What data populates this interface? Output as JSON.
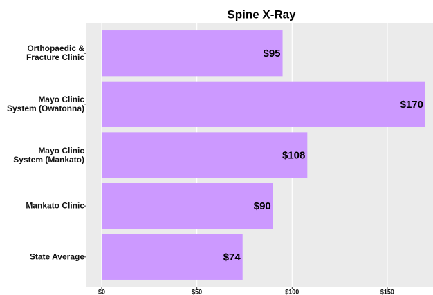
{
  "chart_data": {
    "type": "bar",
    "orientation": "horizontal",
    "title": "Spine X-Ray",
    "categories": [
      "Orthopaedic &\nFracture Clinic",
      "Mayo Clinic\nSystem (Owatonna)",
      "Mayo Clinic\nSystem (Mankato)",
      "Mankato Clinic",
      "State Average"
    ],
    "values": [
      95,
      170,
      108,
      90,
      74
    ],
    "value_labels": [
      "$95",
      "$170",
      "$108",
      "$90",
      "$74"
    ],
    "color": "#cc99ff",
    "xlim": [
      -8,
      174
    ],
    "xticks": [
      {
        "value": 0,
        "label": "$0"
      },
      {
        "value": 50,
        "label": "$50"
      },
      {
        "value": 100,
        "label": "$100"
      },
      {
        "value": 150,
        "label": "$150"
      }
    ],
    "grid": true
  }
}
